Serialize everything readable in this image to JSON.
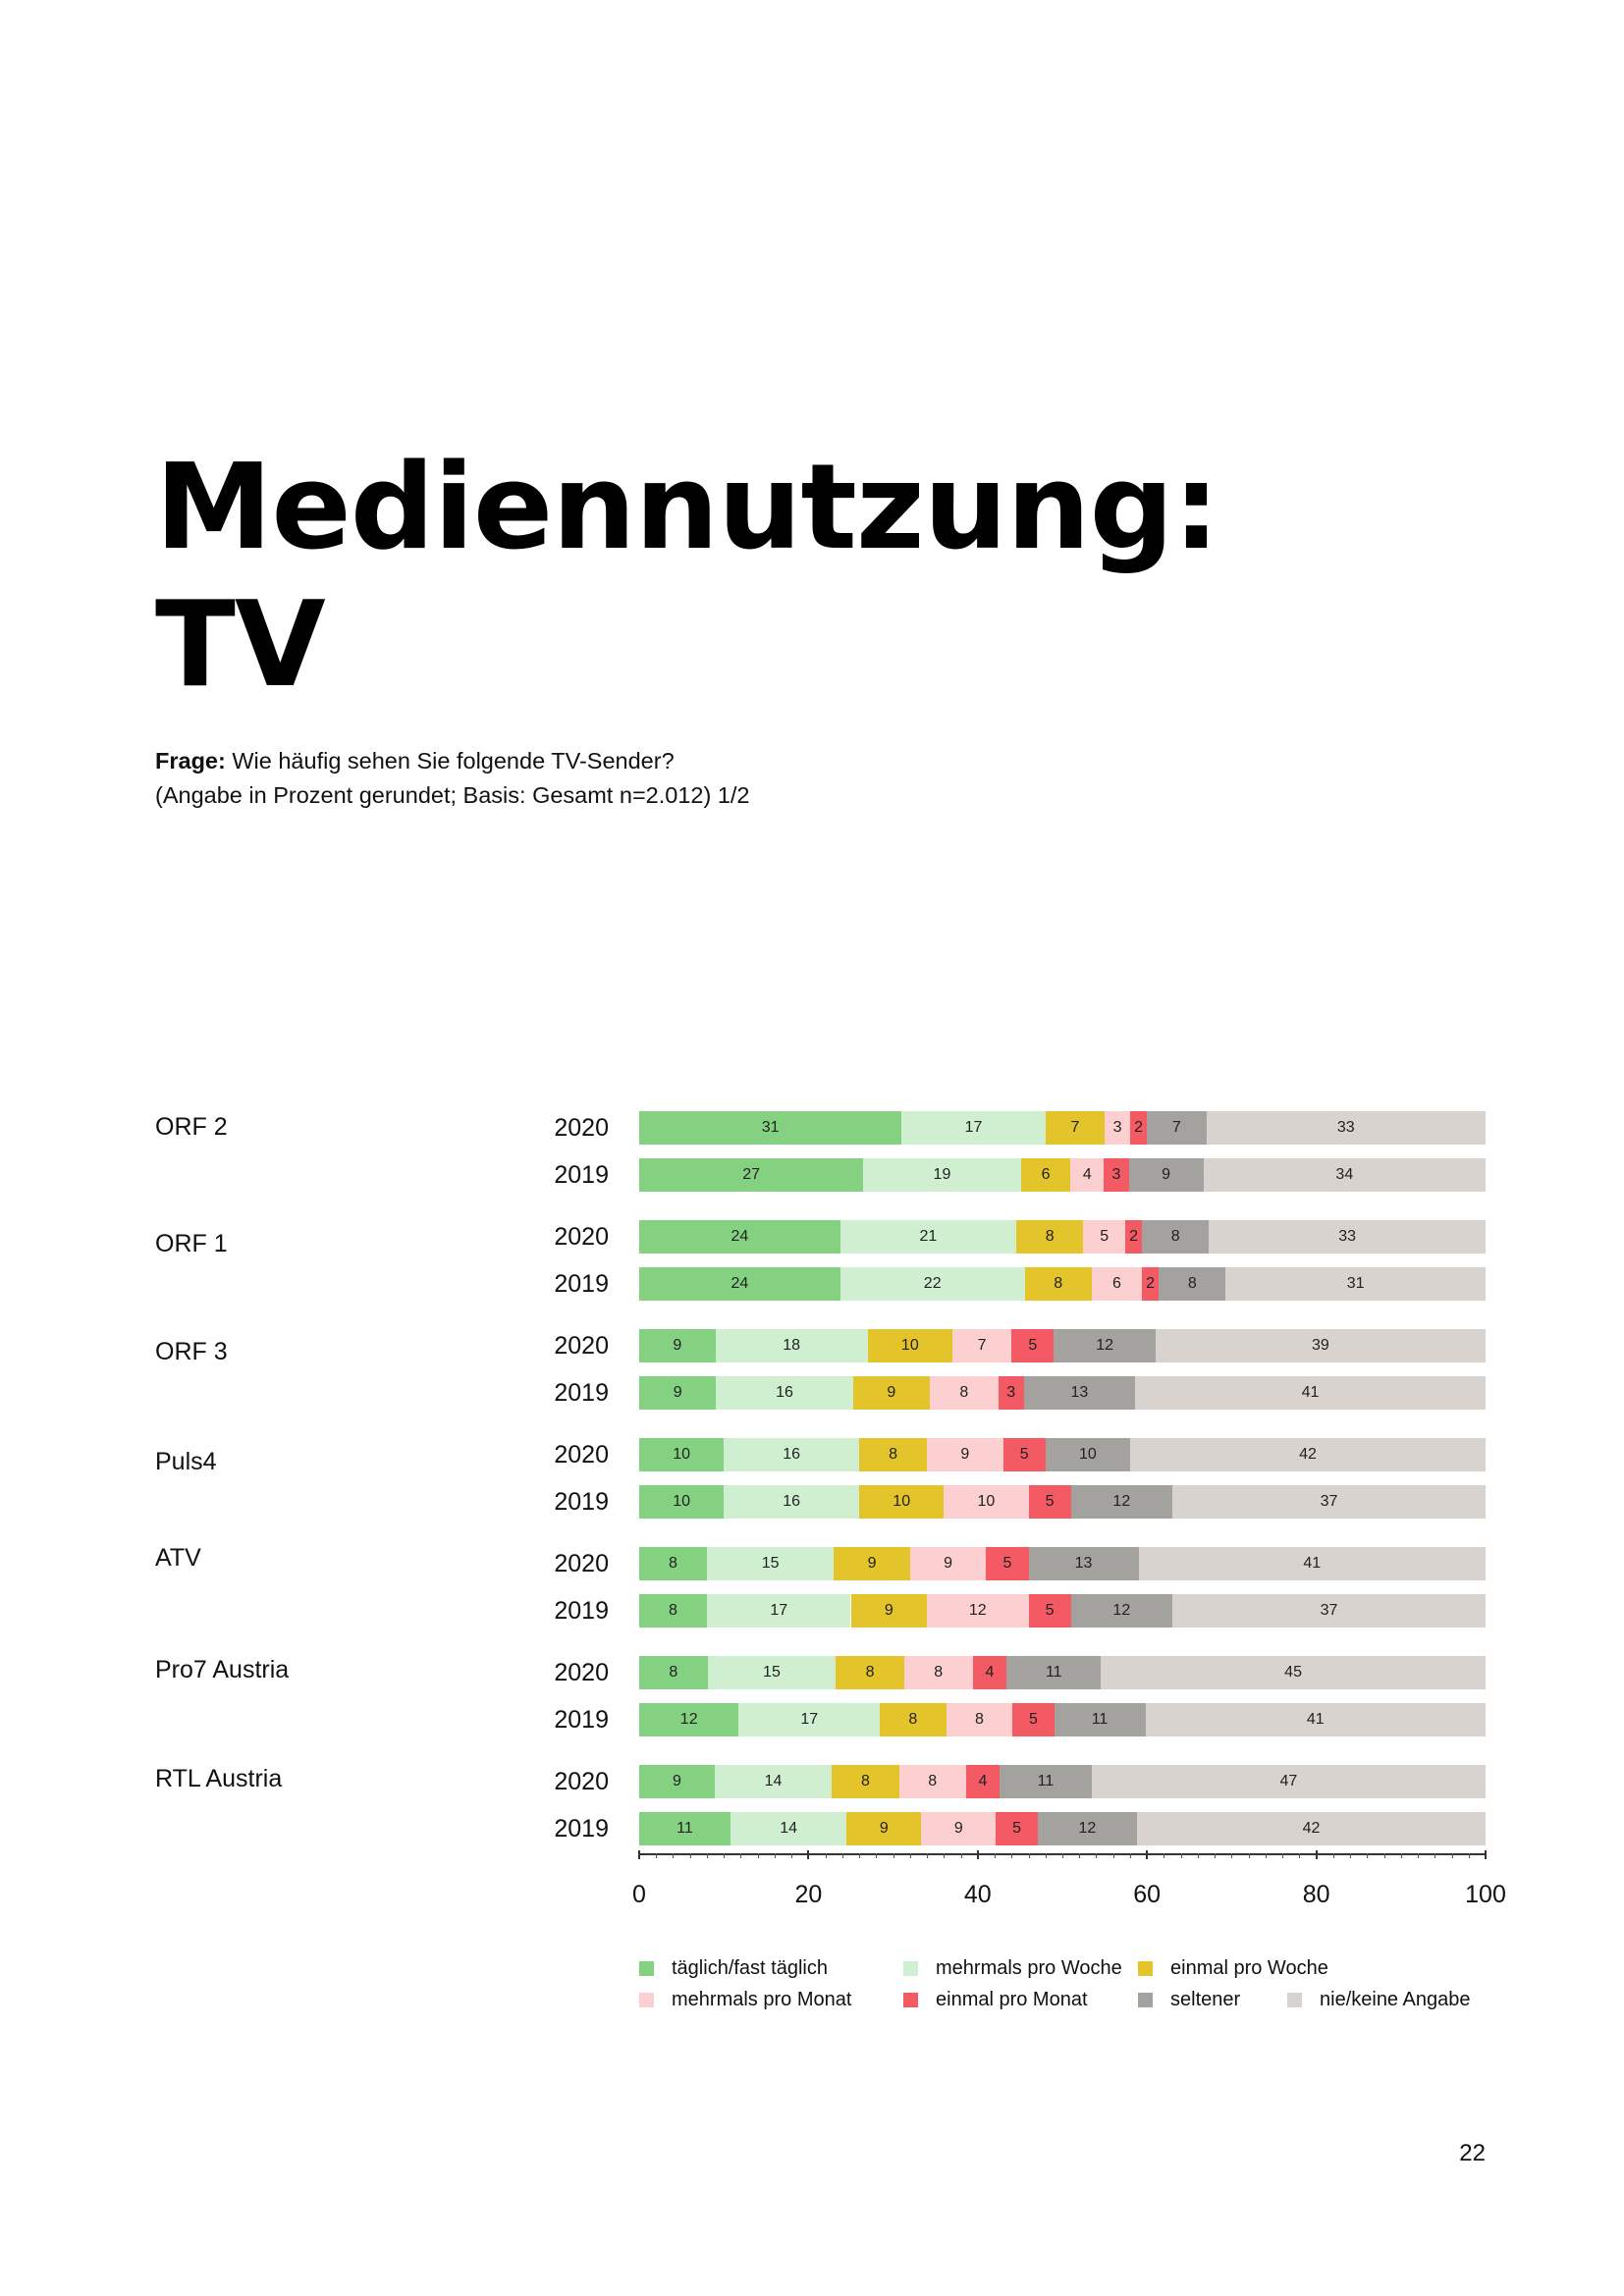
{
  "page": {
    "title_line1": "Mediennutzung:",
    "title_line2": "TV",
    "question_prefix": "Frage:",
    "question_text": " Wie häufig sehen Sie folgende TV-Sender?",
    "question_note": "(Angabe in Prozent gerundet; Basis: Gesamt n=2.012) 1/2",
    "page_number": "22"
  },
  "chart_data": {
    "type": "bar",
    "orientation": "horizontal",
    "stacked": true,
    "xlim": [
      0,
      100
    ],
    "x_ticks": [
      "0",
      "20",
      "40",
      "60",
      "80",
      "100"
    ],
    "legend_position": "bottom",
    "categories": [
      {
        "name": "täglich/fast täglich",
        "color": "#84d182"
      },
      {
        "name": "mehrmals pro Woche",
        "color": "#d0efd1"
      },
      {
        "name": "einmal pro Woche",
        "color": "#e3c52b"
      },
      {
        "name": "mehrmals pro Monat",
        "color": "#fcd0d0"
      },
      {
        "name": "einmal pro Monat",
        "color": "#f35a64"
      },
      {
        "name": "seltener",
        "color": "#a3a29e"
      },
      {
        "name": "nie/keine Angabe",
        "color": "#d8d3ce"
      }
    ],
    "groups": [
      {
        "name": "ORF 2",
        "rows": [
          {
            "year": "2020",
            "values": [
              31,
              17,
              7,
              3,
              2,
              7,
              33
            ]
          },
          {
            "year": "2019",
            "values": [
              27,
              19,
              6,
              4,
              3,
              9,
              34
            ]
          }
        ]
      },
      {
        "name": "ORF 1",
        "rows": [
          {
            "year": "2020",
            "values": [
              24,
              21,
              8,
              5,
              2,
              8,
              33
            ]
          },
          {
            "year": "2019",
            "values": [
              24,
              22,
              8,
              6,
              2,
              8,
              31
            ]
          }
        ]
      },
      {
        "name": "ORF 3",
        "rows": [
          {
            "year": "2020",
            "values": [
              9,
              18,
              10,
              7,
              5,
              12,
              39
            ]
          },
          {
            "year": "2019",
            "values": [
              9,
              16,
              9,
              8,
              3,
              13,
              41
            ]
          }
        ]
      },
      {
        "name": "Puls4",
        "rows": [
          {
            "year": "2020",
            "values": [
              10,
              16,
              8,
              9,
              5,
              10,
              42
            ]
          },
          {
            "year": "2019",
            "values": [
              10,
              16,
              10,
              10,
              5,
              12,
              37
            ]
          }
        ]
      },
      {
        "name": "ATV",
        "rows": [
          {
            "year": "2020",
            "values": [
              8,
              15,
              9,
              9,
              5,
              13,
              41
            ]
          },
          {
            "year": "2019",
            "values": [
              8,
              17,
              9,
              12,
              5,
              12,
              37
            ]
          }
        ]
      },
      {
        "name": "Pro7 Austria",
        "rows": [
          {
            "year": "2020",
            "values": [
              8,
              15,
              8,
              8,
              4,
              11,
              45
            ]
          },
          {
            "year": "2019",
            "values": [
              12,
              17,
              8,
              8,
              5,
              11,
              41
            ]
          }
        ]
      },
      {
        "name": "RTL Austria",
        "rows": [
          {
            "year": "2020",
            "values": [
              9,
              14,
              8,
              8,
              4,
              11,
              47
            ]
          },
          {
            "year": "2019",
            "values": [
              11,
              14,
              9,
              9,
              5,
              12,
              42
            ]
          }
        ]
      }
    ]
  }
}
